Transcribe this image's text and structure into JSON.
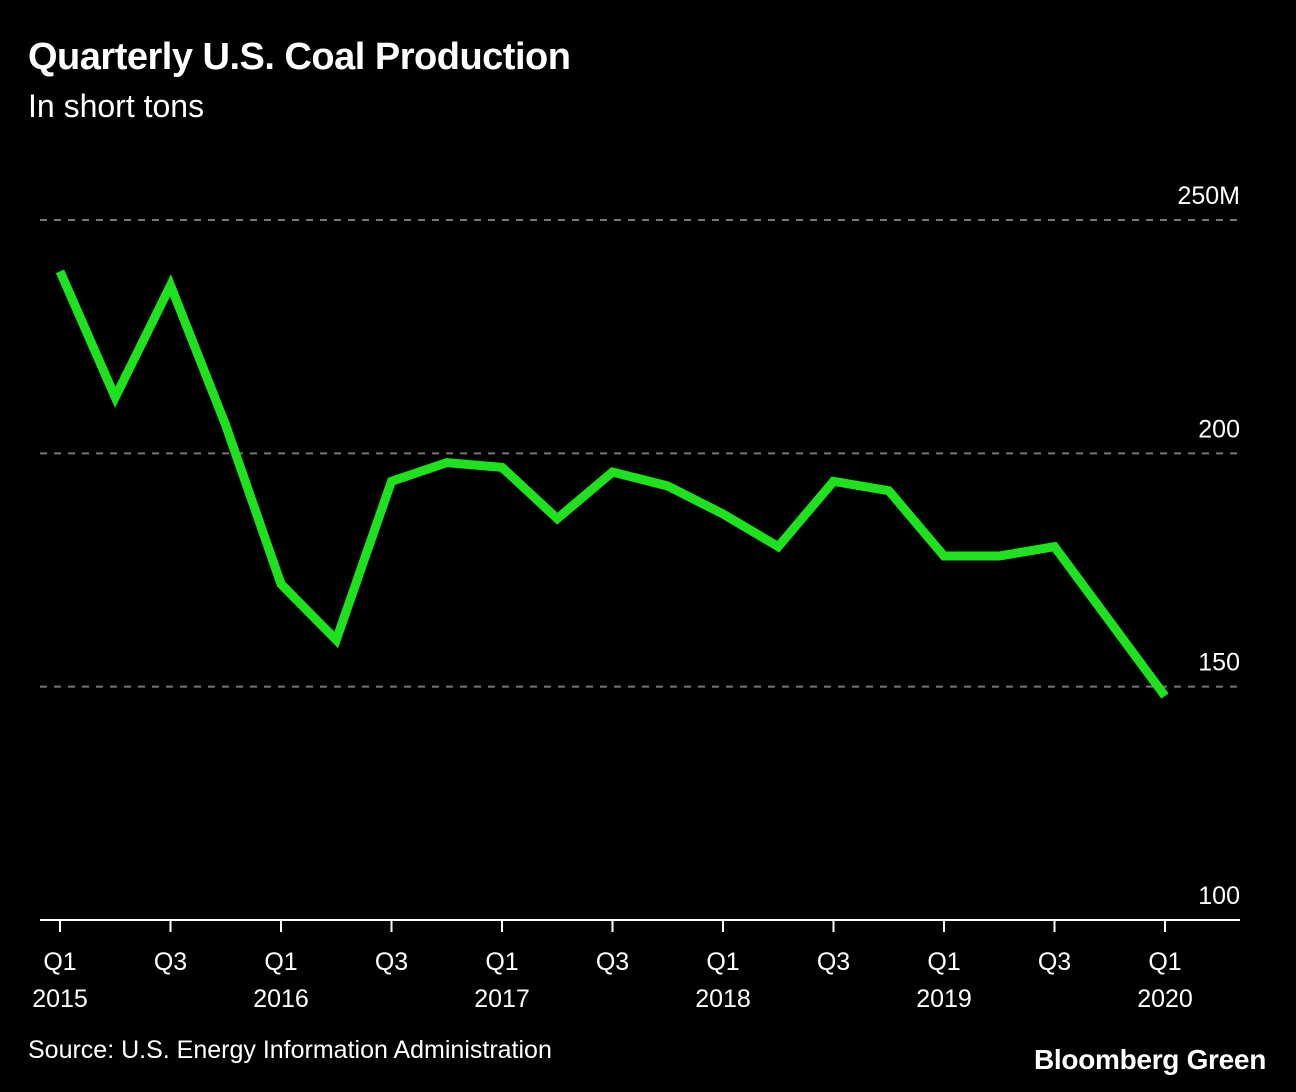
{
  "title": "Quarterly U.S. Coal Production",
  "subtitle": "In short tons",
  "source": "Source: U.S. Energy Information Administration",
  "brand": "Bloomberg Green",
  "colors": {
    "background": "#000000",
    "line": "#1ee21e",
    "grid": "#777777",
    "text": "#ffffff"
  },
  "chart_data": {
    "type": "line",
    "title": "Quarterly U.S. Coal Production",
    "subtitle": "In short tons",
    "x": [
      "Q1 2015",
      "Q2 2015",
      "Q3 2015",
      "Q4 2015",
      "Q1 2016",
      "Q2 2016",
      "Q3 2016",
      "Q4 2016",
      "Q1 2017",
      "Q2 2017",
      "Q3 2017",
      "Q4 2017",
      "Q1 2018",
      "Q2 2018",
      "Q3 2018",
      "Q4 2018",
      "Q1 2019",
      "Q2 2019",
      "Q3 2019",
      "Q4 2019",
      "Q1 2020"
    ],
    "series": [
      {
        "values": [
          239,
          212,
          236,
          206,
          172,
          160,
          194,
          198,
          197,
          186,
          196,
          193,
          187,
          180,
          194,
          192,
          178,
          178,
          180,
          164,
          148
        ]
      }
    ],
    "ylim": [
      100,
      250
    ],
    "yticks": [
      {
        "value": 250,
        "label": "250M"
      },
      {
        "value": 200,
        "label": "200"
      },
      {
        "value": 150,
        "label": "150"
      },
      {
        "value": 100,
        "label": "100"
      }
    ],
    "xticks": [
      {
        "index": 0,
        "label": "Q1",
        "sublabel": "2015"
      },
      {
        "index": 2,
        "label": "Q3",
        "sublabel": ""
      },
      {
        "index": 4,
        "label": "Q1",
        "sublabel": "2016"
      },
      {
        "index": 6,
        "label": "Q3",
        "sublabel": ""
      },
      {
        "index": 8,
        "label": "Q1",
        "sublabel": "2017"
      },
      {
        "index": 10,
        "label": "Q3",
        "sublabel": ""
      },
      {
        "index": 12,
        "label": "Q1",
        "sublabel": "2018"
      },
      {
        "index": 14,
        "label": "Q3",
        "sublabel": ""
      },
      {
        "index": 16,
        "label": "Q1",
        "sublabel": "2019"
      },
      {
        "index": 18,
        "label": "Q3",
        "sublabel": ""
      },
      {
        "index": 20,
        "label": "Q1",
        "sublabel": "2020"
      }
    ],
    "grid": true,
    "legend": "none"
  }
}
